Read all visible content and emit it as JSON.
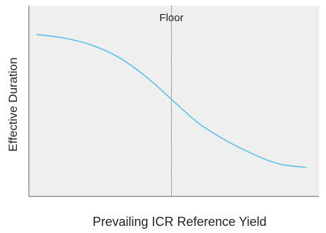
{
  "chart_data": {
    "type": "line",
    "title": "",
    "xlabel": "Prevailing ICR Reference Yield",
    "ylabel": "Effective Duration",
    "x_ticks_shown": false,
    "y_ticks_shown": false,
    "xlim": [
      0,
      1
    ],
    "ylim": [
      0,
      1
    ],
    "grid": false,
    "legend": "none",
    "series": [
      {
        "color": "#5bc0e8",
        "x": [
          0.0,
          0.1,
          0.2,
          0.3,
          0.4,
          0.5,
          0.6,
          0.7,
          0.8,
          0.9,
          1.0
        ],
        "y": [
          0.88,
          0.86,
          0.82,
          0.75,
          0.64,
          0.5,
          0.36,
          0.26,
          0.18,
          0.12,
          0.1
        ]
      }
    ],
    "annotations": [
      {
        "type": "vline",
        "x": 0.5,
        "label": "Floor",
        "color": "#555555"
      }
    ],
    "colors": {
      "plot_background": "#efefef",
      "axis": "#7a7a7a",
      "text": "#222222"
    }
  }
}
